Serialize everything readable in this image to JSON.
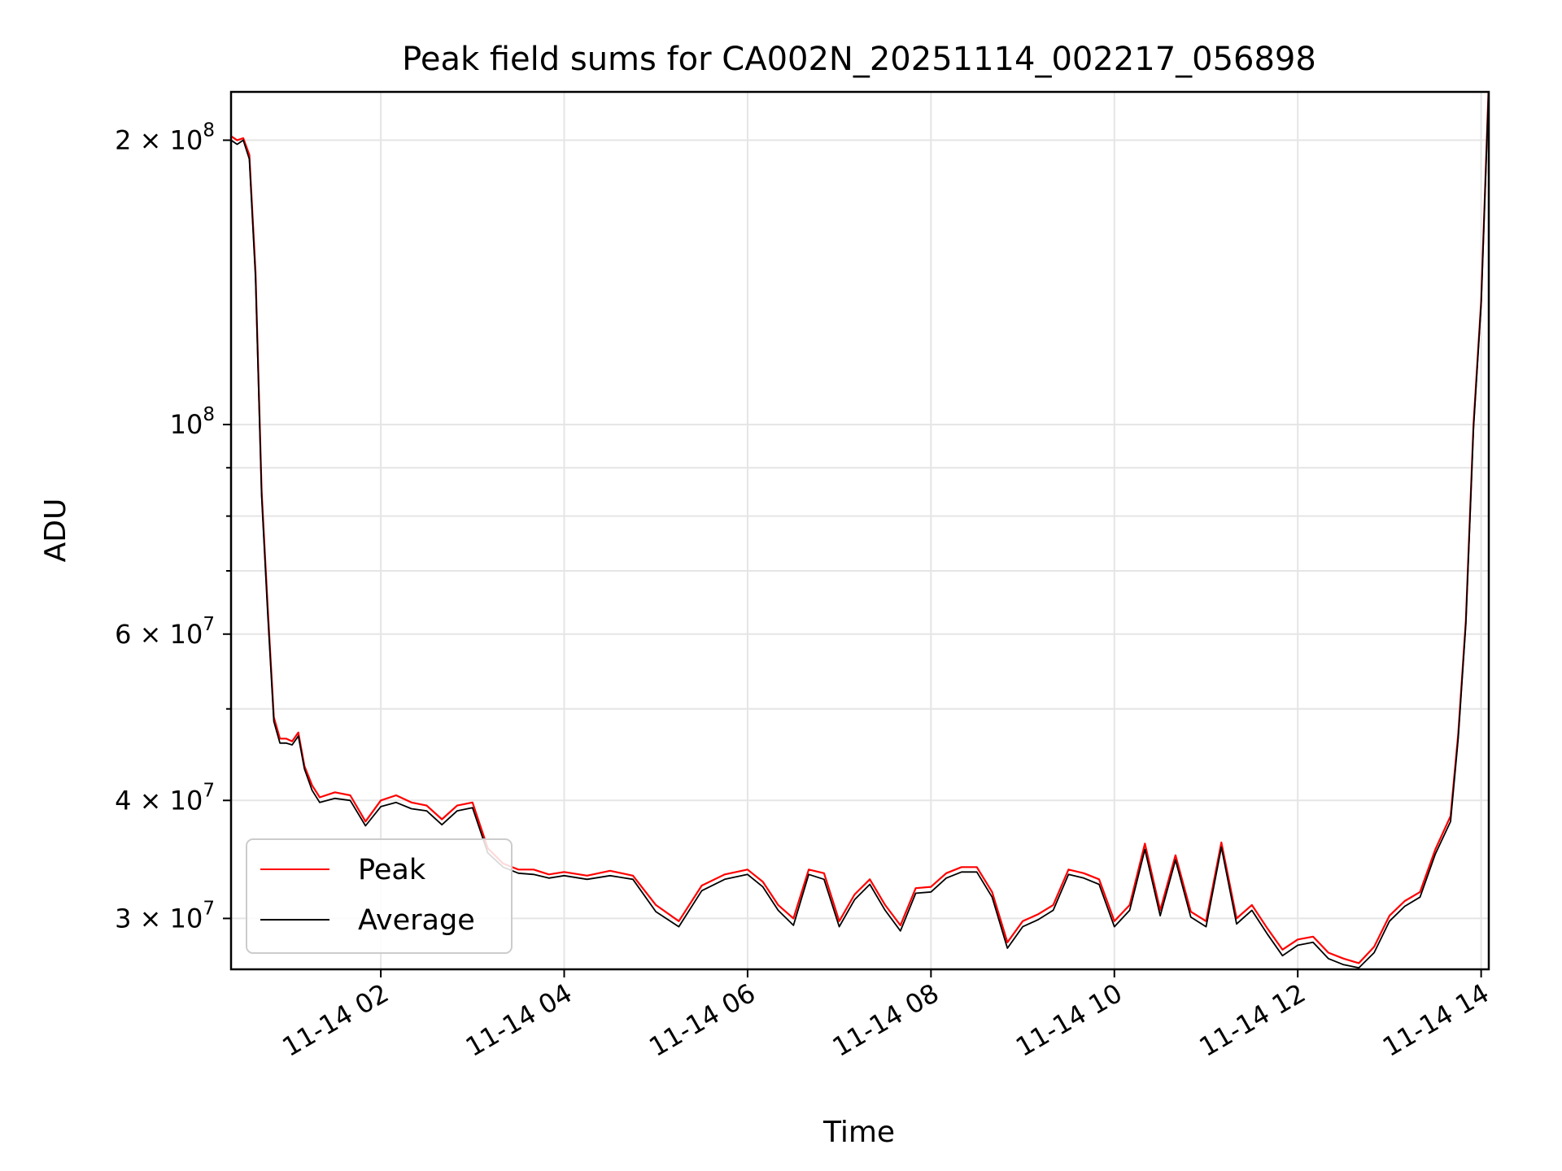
{
  "chart_data": {
    "type": "line",
    "title": "Peak field sums for CA002N_20251114_002217_056898",
    "xlabel": "Time",
    "ylabel": "ADU",
    "yscale": "log",
    "xlim": [
      "11-14 00:22",
      "11-14 14:05"
    ],
    "ylim": [
      26500000,
      225000000
    ],
    "grid": true,
    "legend_position": "lower-left",
    "x_ticks": [
      {
        "label": "11-14 02",
        "value": "11-14 02:00"
      },
      {
        "label": "11-14 04",
        "value": "11-14 04:00"
      },
      {
        "label": "11-14 06",
        "value": "11-14 06:00"
      },
      {
        "label": "11-14 08",
        "value": "11-14 08:00"
      },
      {
        "label": "11-14 10",
        "value": "11-14 10:00"
      },
      {
        "label": "11-14 12",
        "value": "11-14 12:00"
      },
      {
        "label": "11-14 14",
        "value": "11-14 14:00"
      }
    ],
    "y_ticks": [
      {
        "value": 200000000,
        "mant": "2 × 10",
        "exp": "8"
      },
      {
        "value": 100000000,
        "mant": "10",
        "exp": "8"
      },
      {
        "value": 60000000,
        "mant": "6 × 10",
        "exp": "7"
      },
      {
        "value": 40000000,
        "mant": "4 × 10",
        "exp": "7"
      },
      {
        "value": 30000000,
        "mant": "3 × 10",
        "exp": "7"
      }
    ],
    "y_minor_ticks": [
      90000000,
      80000000,
      70000000,
      50000000
    ],
    "series": [
      {
        "name": "Peak",
        "color": "#ff0000",
        "x": [
          "11-14 00:22",
          "11-14 00:26",
          "11-14 00:30",
          "11-14 00:34",
          "11-14 00:38",
          "11-14 00:42",
          "11-14 00:46",
          "11-14 00:50",
          "11-14 00:54",
          "11-14 00:58",
          "11-14 01:02",
          "11-14 01:06",
          "11-14 01:10",
          "11-14 01:15",
          "11-14 01:20",
          "11-14 01:30",
          "11-14 01:40",
          "11-14 01:50",
          "11-14 02:00",
          "11-14 02:10",
          "11-14 02:20",
          "11-14 02:30",
          "11-14 02:40",
          "11-14 02:50",
          "11-14 03:00",
          "11-14 03:10",
          "11-14 03:20",
          "11-14 03:30",
          "11-14 03:40",
          "11-14 03:50",
          "11-14 04:00",
          "11-14 04:15",
          "11-14 04:30",
          "11-14 04:45",
          "11-14 05:00",
          "11-14 05:15",
          "11-14 05:30",
          "11-14 05:45",
          "11-14 06:00",
          "11-14 06:10",
          "11-14 06:20",
          "11-14 06:30",
          "11-14 06:40",
          "11-14 06:50",
          "11-14 07:00",
          "11-14 07:10",
          "11-14 07:20",
          "11-14 07:30",
          "11-14 07:40",
          "11-14 07:50",
          "11-14 08:00",
          "11-14 08:10",
          "11-14 08:20",
          "11-14 08:30",
          "11-14 08:40",
          "11-14 08:50",
          "11-14 09:00",
          "11-14 09:10",
          "11-14 09:20",
          "11-14 09:30",
          "11-14 09:40",
          "11-14 09:50",
          "11-14 10:00",
          "11-14 10:10",
          "11-14 10:20",
          "11-14 10:30",
          "11-14 10:40",
          "11-14 10:50",
          "11-14 11:00",
          "11-14 11:10",
          "11-14 11:20",
          "11-14 11:30",
          "11-14 11:40",
          "11-14 11:50",
          "11-14 12:00",
          "11-14 12:10",
          "11-14 12:20",
          "11-14 12:30",
          "11-14 12:40",
          "11-14 12:50",
          "11-14 13:00",
          "11-14 13:10",
          "11-14 13:20",
          "11-14 13:30",
          "11-14 13:40",
          "11-14 13:45",
          "11-14 13:50",
          "11-14 13:55",
          "11-14 14:00",
          "11-14 14:05"
        ],
        "y": [
          202000000,
          200000000,
          201000000,
          193000000,
          145000000,
          85000000,
          64000000,
          49000000,
          46500000,
          46500000,
          46200000,
          47200000,
          43500000,
          41500000,
          40300000,
          40800000,
          40500000,
          38000000,
          40000000,
          40500000,
          39800000,
          39500000,
          38200000,
          39500000,
          39800000,
          35600000,
          34300000,
          33800000,
          33800000,
          33400000,
          33600000,
          33300000,
          33700000,
          33300000,
          31000000,
          29800000,
          32500000,
          33400000,
          33800000,
          32800000,
          31000000,
          30000000,
          33800000,
          33500000,
          29800000,
          31800000,
          33000000,
          31000000,
          29500000,
          32300000,
          32400000,
          33500000,
          34000000,
          34000000,
          32000000,
          28300000,
          29800000,
          30300000,
          31000000,
          33800000,
          33500000,
          33000000,
          29800000,
          31000000,
          36000000,
          30600000,
          35000000,
          30500000,
          29800000,
          36100000,
          30000000,
          31000000,
          29300000,
          27800000,
          28500000,
          28700000,
          27600000,
          27200000,
          26900000,
          28000000,
          30200000,
          31300000,
          32000000,
          35500000,
          38500000,
          47000000,
          62000000,
          100000000,
          135000000,
          230000000
        ]
      },
      {
        "name": "Average",
        "color": "#000000",
        "x": [
          "11-14 00:22",
          "11-14 00:26",
          "11-14 00:30",
          "11-14 00:34",
          "11-14 00:38",
          "11-14 00:42",
          "11-14 00:46",
          "11-14 00:50",
          "11-14 00:54",
          "11-14 00:58",
          "11-14 01:02",
          "11-14 01:06",
          "11-14 01:10",
          "11-14 01:15",
          "11-14 01:20",
          "11-14 01:30",
          "11-14 01:40",
          "11-14 01:50",
          "11-14 02:00",
          "11-14 02:10",
          "11-14 02:20",
          "11-14 02:30",
          "11-14 02:40",
          "11-14 02:50",
          "11-14 03:00",
          "11-14 03:10",
          "11-14 03:20",
          "11-14 03:30",
          "11-14 03:40",
          "11-14 03:50",
          "11-14 04:00",
          "11-14 04:15",
          "11-14 04:30",
          "11-14 04:45",
          "11-14 05:00",
          "11-14 05:15",
          "11-14 05:30",
          "11-14 05:45",
          "11-14 06:00",
          "11-14 06:10",
          "11-14 06:20",
          "11-14 06:30",
          "11-14 06:40",
          "11-14 06:50",
          "11-14 07:00",
          "11-14 07:10",
          "11-14 07:20",
          "11-14 07:30",
          "11-14 07:40",
          "11-14 07:50",
          "11-14 08:00",
          "11-14 08:10",
          "11-14 08:20",
          "11-14 08:30",
          "11-14 08:40",
          "11-14 08:50",
          "11-14 09:00",
          "11-14 09:10",
          "11-14 09:20",
          "11-14 09:30",
          "11-14 09:40",
          "11-14 09:50",
          "11-14 10:00",
          "11-14 10:10",
          "11-14 10:20",
          "11-14 10:30",
          "11-14 10:40",
          "11-14 10:50",
          "11-14 11:00",
          "11-14 11:10",
          "11-14 11:20",
          "11-14 11:30",
          "11-14 11:40",
          "11-14 11:50",
          "11-14 12:00",
          "11-14 12:10",
          "11-14 12:20",
          "11-14 12:30",
          "11-14 12:40",
          "11-14 12:50",
          "11-14 13:00",
          "11-14 13:10",
          "11-14 13:20",
          "11-14 13:30",
          "11-14 13:40",
          "11-14 13:45",
          "11-14 13:50",
          "11-14 13:55",
          "11-14 14:00",
          "11-14 14:05"
        ],
        "y": [
          200000000,
          198000000,
          200000000,
          191000000,
          143000000,
          84000000,
          63000000,
          48500000,
          46000000,
          46000000,
          45800000,
          46800000,
          43200000,
          41000000,
          39800000,
          40200000,
          40000000,
          37600000,
          39400000,
          39800000,
          39200000,
          39000000,
          37700000,
          39000000,
          39300000,
          35200000,
          34000000,
          33500000,
          33400000,
          33100000,
          33300000,
          33000000,
          33300000,
          33000000,
          30500000,
          29400000,
          32100000,
          33000000,
          33400000,
          32400000,
          30600000,
          29500000,
          33400000,
          33000000,
          29400000,
          31400000,
          32600000,
          30600000,
          29100000,
          31900000,
          32000000,
          33100000,
          33600000,
          33600000,
          31600000,
          27900000,
          29400000,
          29900000,
          30600000,
          33400000,
          33100000,
          32600000,
          29400000,
          30600000,
          35500000,
          30200000,
          34600000,
          30100000,
          29400000,
          35700000,
          29600000,
          30600000,
          28900000,
          27400000,
          28100000,
          28300000,
          27200000,
          26800000,
          26600000,
          27600000,
          29800000,
          30900000,
          31600000,
          35100000,
          38000000,
          46500000,
          61500000,
          99000000,
          134000000,
          228000000
        ]
      }
    ]
  }
}
